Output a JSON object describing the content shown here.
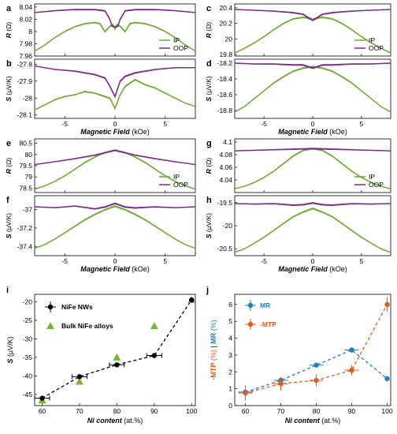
{
  "colors": {
    "ip": "#6aaa2e",
    "oop": "#7a2b8c",
    "mr": "#1f7fc0",
    "mtp": "#e8591a",
    "nw": "#111111",
    "bulk": "#76b52e"
  },
  "xlabel_prefix": "Magnetic Field",
  "xlabel_suffix": " (kOe)",
  "chart_data": [
    {
      "id": "a",
      "label": "a",
      "type": "line",
      "ylabel": "R",
      "yunit": " (Ω)",
      "xlim": [
        -8,
        8
      ],
      "ylim": [
        7.96,
        8.045
      ],
      "yticks": [
        "8.04",
        "8.02",
        "8",
        "7.98",
        "7.96"
      ],
      "ytick_values": [
        8.04,
        8.02,
        8.0,
        7.98,
        7.96
      ],
      "xticks": [],
      "xtick_values": [
        -5,
        0,
        5
      ],
      "legend": [
        "IP",
        "OOP"
      ],
      "legend_pos": "lower-right",
      "series": [
        {
          "name": "IP",
          "color_key": "ip",
          "x": [
            -8,
            -7,
            -6,
            -5,
            -4,
            -3,
            -2,
            -1.5,
            -1,
            -0.5,
            -0.2,
            0,
            0.2,
            0.5,
            1,
            1.5,
            2,
            3,
            4,
            5,
            6,
            7,
            8
          ],
          "y": [
            7.968,
            7.978,
            7.99,
            8.0,
            8.008,
            8.013,
            8.015,
            8.013,
            8.0,
            8.009,
            8.012,
            8.004,
            8.012,
            8.009,
            8.0,
            8.013,
            8.015,
            8.013,
            8.008,
            8.0,
            7.99,
            7.978,
            7.968
          ]
        },
        {
          "name": "OOP",
          "color_key": "oop",
          "x": [
            -8,
            -6,
            -4,
            -2,
            -1,
            -0.5,
            -0.3,
            0,
            0.3,
            0.5,
            1,
            2,
            4,
            6,
            8
          ],
          "y": [
            8.031,
            8.034,
            8.036,
            8.036,
            8.034,
            8.02,
            8.009,
            8.008,
            8.009,
            8.02,
            8.034,
            8.036,
            8.036,
            8.034,
            8.031
          ]
        }
      ]
    },
    {
      "id": "b",
      "label": "b",
      "type": "line",
      "ylabel": "S",
      "yunit": " (μV/K)",
      "xlim": [
        -8,
        8
      ],
      "ylim": [
        -28.12,
        -27.77
      ],
      "yticks": [
        "-27.8",
        "-27.9",
        "-28",
        "-28.1"
      ],
      "ytick_values": [
        -27.8,
        -27.9,
        -28.0,
        -28.1
      ],
      "xticks": [
        "-5",
        "0",
        "5"
      ],
      "xtick_values": [
        -5,
        0,
        5
      ],
      "legend": [],
      "legend_pos": "",
      "series": [
        {
          "name": "IP",
          "color_key": "ip",
          "x": [
            -8,
            -7,
            -6,
            -5,
            -4,
            -3,
            -2,
            -1,
            -0.5,
            0,
            0.5,
            1,
            2,
            3,
            4,
            5,
            6,
            7,
            8
          ],
          "y": [
            -28.07,
            -28.04,
            -28.01,
            -27.99,
            -27.98,
            -27.96,
            -27.97,
            -27.99,
            -28.0,
            -28.06,
            -27.98,
            -27.93,
            -27.89,
            -27.92,
            -27.94,
            -27.97,
            -28.0,
            -28.03,
            -28.05
          ]
        },
        {
          "name": "OOP",
          "color_key": "oop",
          "x": [
            -8,
            -6,
            -4,
            -2,
            -1,
            -0.5,
            0,
            0.5,
            1,
            2,
            4,
            6,
            8
          ],
          "y": [
            -27.81,
            -27.83,
            -27.84,
            -27.86,
            -27.88,
            -27.93,
            -27.99,
            -27.9,
            -27.87,
            -27.85,
            -27.83,
            -27.82,
            -27.82
          ]
        }
      ]
    },
    {
      "id": "c",
      "label": "c",
      "type": "line",
      "ylabel": "R",
      "yunit": " (Ω)",
      "xlim": [
        -8,
        8
      ],
      "ylim": [
        19.78,
        20.45
      ],
      "yticks": [
        "20.4",
        "20.2",
        "20",
        "19.8"
      ],
      "ytick_values": [
        20.4,
        20.2,
        20.0,
        19.8
      ],
      "xticks": [],
      "xtick_values": [
        -5,
        0,
        5
      ],
      "legend": [
        "IP",
        "OOP"
      ],
      "legend_pos": "lower-right",
      "series": [
        {
          "name": "IP",
          "color_key": "ip",
          "x": [
            -8,
            -7,
            -6,
            -5,
            -4,
            -3,
            -2,
            -1,
            -0.5,
            0,
            0.5,
            1,
            2,
            3,
            4,
            5,
            6,
            7,
            8
          ],
          "y": [
            19.82,
            19.88,
            19.95,
            20.03,
            20.12,
            20.2,
            20.26,
            20.28,
            20.27,
            20.24,
            20.27,
            20.28,
            20.26,
            20.2,
            20.12,
            20.03,
            19.95,
            19.88,
            19.82
          ]
        },
        {
          "name": "OOP",
          "color_key": "oop",
          "x": [
            -8,
            -6,
            -4,
            -2,
            -1,
            -0.5,
            0,
            0.5,
            1,
            2,
            4,
            6,
            8
          ],
          "y": [
            20.38,
            20.37,
            20.36,
            20.34,
            20.32,
            20.28,
            20.25,
            20.28,
            20.32,
            20.34,
            20.36,
            20.37,
            20.38
          ]
        }
      ]
    },
    {
      "id": "d",
      "label": "d",
      "type": "line",
      "ylabel": "S",
      "yunit": " (μV/K)",
      "xlim": [
        -8,
        8
      ],
      "ylim": [
        -18.9,
        -18.15
      ],
      "yticks": [
        "-18.2",
        "-18.4",
        "-18.6",
        "-18.8"
      ],
      "ytick_values": [
        -18.2,
        -18.4,
        -18.6,
        -18.8
      ],
      "xticks": [
        "-5",
        "0",
        "5"
      ],
      "xtick_values": [
        -5,
        0,
        5
      ],
      "legend": [],
      "legend_pos": "",
      "series": [
        {
          "name": "IP",
          "color_key": "ip",
          "x": [
            -8,
            -7,
            -6,
            -5,
            -4,
            -3,
            -2,
            -1,
            0,
            1,
            2,
            3,
            4,
            5,
            6,
            7,
            8
          ],
          "y": [
            -18.82,
            -18.75,
            -18.65,
            -18.55,
            -18.45,
            -18.37,
            -18.3,
            -18.26,
            -18.24,
            -18.26,
            -18.3,
            -18.37,
            -18.45,
            -18.55,
            -18.65,
            -18.75,
            -18.82
          ]
        },
        {
          "name": "OOP",
          "color_key": "oop",
          "x": [
            -8,
            -6,
            -4,
            -2,
            -1,
            0,
            1,
            2,
            4,
            6,
            8
          ],
          "y": [
            -18.2,
            -18.21,
            -18.21,
            -18.22,
            -18.22,
            -18.26,
            -18.22,
            -18.22,
            -18.21,
            -18.21,
            -18.2
          ]
        }
      ]
    },
    {
      "id": "e",
      "label": "e",
      "type": "line",
      "ylabel": "R",
      "yunit": " (Ω)",
      "xlim": [
        -8,
        8
      ],
      "ylim": [
        78.3,
        80.7
      ],
      "yticks": [
        "80.5",
        "80",
        "79.5",
        "79",
        "78.5"
      ],
      "ytick_values": [
        80.5,
        80.0,
        79.5,
        79.0,
        78.5
      ],
      "xticks": [],
      "xtick_values": [
        -5,
        0,
        5
      ],
      "legend": [
        "IP",
        "OOP"
      ],
      "legend_pos": "lower-right",
      "series": [
        {
          "name": "IP",
          "color_key": "ip",
          "x": [
            -8,
            -7,
            -6,
            -5,
            -4,
            -3,
            -2,
            -1,
            0,
            1,
            2,
            3,
            4,
            5,
            6,
            7,
            8
          ],
          "y": [
            78.45,
            78.6,
            78.8,
            79.05,
            79.35,
            79.65,
            79.9,
            80.1,
            80.2,
            80.1,
            79.9,
            79.65,
            79.35,
            79.05,
            78.8,
            78.6,
            78.45
          ]
        },
        {
          "name": "OOP",
          "color_key": "oop",
          "x": [
            -8,
            -6,
            -4,
            -2,
            0,
            2,
            4,
            6,
            8
          ],
          "y": [
            79.55,
            79.68,
            79.82,
            79.98,
            80.2,
            79.98,
            79.82,
            79.68,
            79.55
          ]
        }
      ]
    },
    {
      "id": "f",
      "label": "f",
      "type": "line",
      "ylabel": "S",
      "yunit": " (μV/K)",
      "xlim": [
        -8,
        8
      ],
      "ylim": [
        -37.5,
        -36.85
      ],
      "yticks": [
        "-37",
        "-37.2",
        "-37.4"
      ],
      "ytick_values": [
        -37.0,
        -37.2,
        -37.4
      ],
      "xticks": [
        "-5",
        "0",
        "5"
      ],
      "xtick_values": [
        -5,
        0,
        5
      ],
      "legend": [],
      "legend_pos": "",
      "series": [
        {
          "name": "IP",
          "color_key": "ip",
          "x": [
            -8,
            -7,
            -6,
            -5,
            -4,
            -3,
            -2,
            -1,
            0,
            1,
            2,
            3,
            4,
            5,
            6,
            7,
            8
          ],
          "y": [
            -37.42,
            -37.38,
            -37.32,
            -37.25,
            -37.18,
            -37.11,
            -37.05,
            -37.0,
            -36.96,
            -37.0,
            -37.05,
            -37.11,
            -37.18,
            -37.25,
            -37.32,
            -37.38,
            -37.42
          ]
        },
        {
          "name": "OOP",
          "color_key": "oop",
          "x": [
            -8,
            -6,
            -4,
            -2,
            -1,
            0,
            1,
            2,
            4,
            6,
            8
          ],
          "y": [
            -36.97,
            -36.98,
            -36.96,
            -36.99,
            -36.97,
            -36.93,
            -36.97,
            -36.98,
            -36.97,
            -36.98,
            -36.97
          ]
        }
      ]
    },
    {
      "id": "g",
      "label": "g",
      "type": "line",
      "ylabel": "R",
      "yunit": " (Ω)",
      "xlim": [
        -8,
        8
      ],
      "ylim": [
        4.02,
        4.105
      ],
      "yticks": [
        "4.1",
        "4.08",
        "4.06",
        "4.04"
      ],
      "ytick_values": [
        4.1,
        4.08,
        4.06,
        4.04
      ],
      "xticks": [],
      "xtick_values": [
        -5,
        0,
        5
      ],
      "legend": [
        "IP",
        "OOP"
      ],
      "legend_pos": "lower-right",
      "series": [
        {
          "name": "IP",
          "color_key": "ip",
          "x": [
            -8,
            -7,
            -6,
            -5,
            -4,
            -3,
            -2,
            -1,
            0,
            1,
            2,
            3,
            4,
            5,
            6,
            7,
            8
          ],
          "y": [
            4.026,
            4.03,
            4.036,
            4.044,
            4.054,
            4.066,
            4.078,
            4.087,
            4.09,
            4.087,
            4.078,
            4.066,
            4.054,
            4.044,
            4.036,
            4.03,
            4.026
          ]
        },
        {
          "name": "OOP",
          "color_key": "oop",
          "x": [
            -8,
            -6,
            -4,
            -2,
            0,
            2,
            4,
            6,
            8
          ],
          "y": [
            4.086,
            4.087,
            4.088,
            4.089,
            4.09,
            4.089,
            4.088,
            4.087,
            4.086
          ]
        }
      ]
    },
    {
      "id": "h",
      "label": "h",
      "type": "line",
      "ylabel": "S",
      "yunit": " (μV/K)",
      "xlim": [
        -8,
        8
      ],
      "ylim": [
        -20.65,
        -19.35
      ],
      "yticks": [
        "-19.5",
        "-20",
        "-20.5"
      ],
      "ytick_values": [
        -19.5,
        -20.0,
        -20.5
      ],
      "xticks": [
        "-5",
        "0",
        "5"
      ],
      "xtick_values": [
        -5,
        0,
        5
      ],
      "legend": [],
      "legend_pos": "",
      "series": [
        {
          "name": "IP",
          "color_key": "ip",
          "x": [
            -8,
            -7,
            -6,
            -5,
            -4,
            -3,
            -2,
            -1,
            0,
            1,
            2,
            3,
            4,
            5,
            6,
            7,
            8
          ],
          "y": [
            -20.58,
            -20.5,
            -20.38,
            -20.25,
            -20.1,
            -19.95,
            -19.8,
            -19.7,
            -19.62,
            -19.7,
            -19.8,
            -19.95,
            -20.1,
            -20.25,
            -20.38,
            -20.5,
            -20.58
          ]
        },
        {
          "name": "OOP",
          "color_key": "oop",
          "x": [
            -8,
            -6,
            -4,
            -2,
            -1,
            0,
            1,
            2,
            4,
            6,
            8
          ],
          "y": [
            -19.52,
            -19.53,
            -19.52,
            -19.55,
            -19.54,
            -19.5,
            -19.54,
            -19.55,
            -19.52,
            -19.53,
            -19.52
          ]
        }
      ]
    },
    {
      "id": "i",
      "label": "i",
      "type": "scatter",
      "ylabel": "S",
      "yunit": " (μV/K)",
      "xlabel": "Ni content",
      "xunit": " (at.%)",
      "xlim": [
        58,
        101
      ],
      "ylim": [
        -48,
        -18
      ],
      "yticks": [
        "-20",
        "-25",
        "-30",
        "-35",
        "-40",
        "-45"
      ],
      "ytick_values": [
        -20,
        -25,
        -30,
        -35,
        -40,
        -45
      ],
      "xticks": [
        "60",
        "70",
        "80",
        "90",
        "100"
      ],
      "xtick_values": [
        60,
        70,
        80,
        90,
        100
      ],
      "legend": [
        "NiFe NWs",
        "Bulk NiFe alloys"
      ],
      "legend_pos": "top-left",
      "series": [
        {
          "name": "NiFe NWs",
          "color_key": "nw",
          "x": [
            60,
            70,
            80,
            90,
            100
          ],
          "y": [
            -46,
            -40.2,
            -37,
            -34.5,
            -19.5
          ],
          "xerr": [
            2,
            2,
            2,
            2,
            0
          ],
          "yerr": [
            0.8,
            0.6,
            0.6,
            0.6,
            0.5
          ]
        },
        {
          "name": "Bulk NiFe alloys",
          "color_key": "bulk",
          "x": [
            60,
            70,
            80,
            90,
            100
          ],
          "y": [
            -46.5,
            -41.5,
            -35,
            -26.5,
            -19.5
          ]
        }
      ]
    },
    {
      "id": "j",
      "label": "j",
      "type": "scatter",
      "ylabel_mtp": "-MTP",
      "ylabel_mr": "MR",
      "yunit": " (%)",
      "xlabel": "Ni content",
      "xunit": " (at.%)",
      "xlim": [
        57,
        101
      ],
      "ylim": [
        0,
        6.6
      ],
      "yticks": [
        "6",
        "5",
        "4",
        "3",
        "2",
        "1",
        "0"
      ],
      "ytick_values": [
        6,
        5,
        4,
        3,
        2,
        1,
        0
      ],
      "xticks": [
        "60",
        "70",
        "80",
        "90",
        "100"
      ],
      "xtick_values": [
        60,
        70,
        80,
        90,
        100
      ],
      "legend": [
        "MR",
        "-MTP"
      ],
      "legend_pos": "top-left",
      "series": [
        {
          "name": "MR",
          "color_key": "mr",
          "x": [
            60,
            70,
            80,
            90,
            100
          ],
          "y": [
            0.8,
            1.5,
            2.4,
            3.3,
            1.6
          ],
          "xerr": [
            2,
            2,
            2,
            2,
            0
          ],
          "yerr": [
            0.1,
            0.1,
            0.1,
            0.1,
            0.1
          ]
        },
        {
          "name": "-MTP",
          "color_key": "mtp",
          "x": [
            60,
            70,
            80,
            90,
            100
          ],
          "y": [
            0.75,
            1.3,
            1.5,
            2.1,
            6.0
          ],
          "xerr": [
            2,
            2,
            2,
            2,
            0
          ],
          "yerr": [
            0.45,
            0.4,
            0.35,
            0.3,
            0.45
          ]
        }
      ]
    }
  ]
}
